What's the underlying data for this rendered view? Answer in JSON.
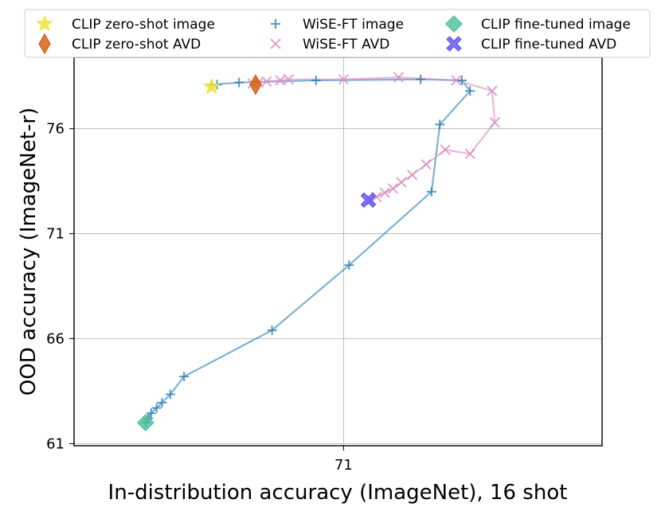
{
  "chart_data": {
    "type": "line",
    "xlabel": "In-distribution accuracy (ImageNet), 16 shot",
    "ylabel": "OOD accuracy (ImageNet-r)",
    "xlim": [
      66.1,
      75.7
    ],
    "ylim": [
      60.9,
      79.4
    ],
    "xticks": [
      71
    ],
    "yticks": [
      61,
      66,
      71,
      76
    ],
    "grid": true,
    "legend": {
      "placement": "top",
      "columns": 3
    },
    "colors": {
      "wise_image": "#2a7fb8",
      "wise_avd": "#d98cc1",
      "zeroshot_image": "#f2e23a",
      "zeroshot_avd": "#d45a0d",
      "finetuned_image": "#4cbf99",
      "finetuned_avd": "#5a4ff2"
    },
    "series": [
      {
        "name": "WiSE-FT image",
        "marker": "plus",
        "line": true,
        "x": [
          67.4,
          67.45,
          67.5,
          67.6,
          67.7,
          67.85,
          68.1,
          69.7,
          71.1,
          72.6,
          72.75,
          73.3,
          73.15,
          72.4,
          70.5,
          69.1,
          68.6,
          68.7
        ],
        "y": [
          62.0,
          62.2,
          62.45,
          62.7,
          62.95,
          63.35,
          64.2,
          66.4,
          69.5,
          73.0,
          76.2,
          77.8,
          78.3,
          78.35,
          78.3,
          78.2,
          78.1,
          78.1
        ]
      },
      {
        "name": "WiSE-FT AVD",
        "marker": "x",
        "line": true,
        "x": [
          71.5,
          71.6,
          71.75,
          71.9,
          72.05,
          72.25,
          72.5,
          72.85,
          73.3,
          73.75,
          73.7,
          73.05,
          72.0,
          71.0,
          70.0,
          69.85,
          69.6,
          69.45,
          69.35
        ],
        "y": [
          72.6,
          72.75,
          72.95,
          73.15,
          73.45,
          73.8,
          74.3,
          75.0,
          74.8,
          76.3,
          77.8,
          78.3,
          78.45,
          78.35,
          78.35,
          78.3,
          78.25,
          78.2,
          78.15
        ]
      },
      {
        "name": "CLIP zero-shot image",
        "marker": "star",
        "line": false,
        "x": [
          68.6
        ],
        "y": [
          78.0
        ]
      },
      {
        "name": "CLIP zero-shot AVD",
        "marker": "diamond",
        "line": false,
        "x": [
          69.4
        ],
        "y": [
          78.1
        ]
      },
      {
        "name": "CLIP fine-tuned image",
        "marker": "diamond",
        "line": false,
        "x": [
          67.4
        ],
        "y": [
          62.0
        ]
      },
      {
        "name": "CLIP fine-tuned AVD",
        "marker": "X",
        "line": false,
        "x": [
          71.45
        ],
        "y": [
          72.6
        ]
      }
    ]
  }
}
